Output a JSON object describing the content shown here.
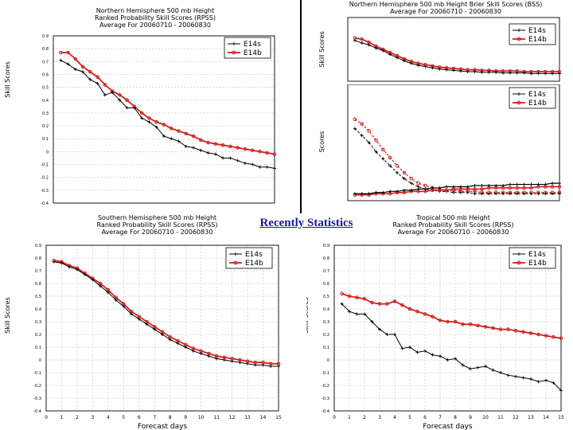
{
  "center_label": "Recently Statistics",
  "colors": {
    "e14s": "#000000",
    "e14b": "#d42020",
    "grid": "#b8b8b8"
  },
  "chart_data": [
    {
      "id": "nh",
      "type": "line",
      "title_lines": [
        "Northern Hemisphere 500 mb Height",
        "Ranked Probability Skill Scores (RPSS)",
        "Average For 20060710 - 20060830"
      ],
      "ylabel": "Skill Scores",
      "xlabel": "",
      "ylim": [
        -0.4,
        0.9
      ],
      "yticks": [
        -0.4,
        -0.3,
        -0.2,
        -0.1,
        0,
        0.1,
        0.2,
        0.3,
        0.4,
        0.5,
        0.6,
        0.7,
        0.8,
        0.9
      ],
      "ytick_labels": [
        "-0.4",
        "-0.3",
        "-0.2",
        "-0.1",
        "0",
        "0.1",
        "0.2",
        "0.3",
        "0.4",
        "0.5",
        "0.6",
        "0.7",
        "0.8",
        "0.9"
      ],
      "xlim": [
        0,
        15
      ],
      "xticks": [],
      "legend": [
        "E14s",
        "E14b"
      ],
      "legend_loc": "top-right",
      "x": [
        0.5,
        1,
        1.5,
        2,
        2.5,
        3,
        3.5,
        4,
        4.5,
        5,
        5.5,
        6,
        6.5,
        7,
        7.5,
        8,
        8.5,
        9,
        9.5,
        10,
        10.5,
        11,
        11.5,
        12,
        12.5,
        13,
        13.5,
        14,
        14.5,
        15
      ],
      "series": [
        {
          "name": "E14s",
          "values": [
            0.71,
            0.68,
            0.64,
            0.62,
            0.56,
            0.53,
            0.44,
            0.46,
            0.4,
            0.34,
            0.34,
            0.26,
            0.23,
            0.19,
            0.12,
            0.1,
            0.08,
            0.04,
            0.03,
            0.01,
            -0.01,
            -0.02,
            -0.05,
            -0.05,
            -0.07,
            -0.09,
            -0.1,
            -0.12,
            -0.12,
            -0.13
          ]
        },
        {
          "name": "E14b",
          "values": [
            0.77,
            0.77,
            0.72,
            0.66,
            0.62,
            0.58,
            0.52,
            0.47,
            0.44,
            0.4,
            0.35,
            0.3,
            0.26,
            0.23,
            0.21,
            0.18,
            0.16,
            0.14,
            0.12,
            0.09,
            0.07,
            0.06,
            0.05,
            0.04,
            0.03,
            0.02,
            0.01,
            0.0,
            -0.01,
            -0.02
          ]
        }
      ]
    },
    {
      "id": "nh_brier_top",
      "type": "line",
      "title_lines": [
        "Northern Hemisphere 500 mb Height Brier Skill Scores (BSS)",
        "Average For 20060710 - 20060830"
      ],
      "ylabel": "Skill Scores",
      "xlabel": "",
      "ylim": [
        0,
        1
      ],
      "yticks": [],
      "xlim": [
        0,
        15
      ],
      "xticks": [],
      "legend": [
        "E14s",
        "E14b"
      ],
      "legend_loc": "top-right",
      "x": [
        0.5,
        1,
        1.5,
        2,
        2.5,
        3,
        3.5,
        4,
        4.5,
        5,
        5.5,
        6,
        6.5,
        7,
        7.5,
        8,
        8.5,
        9,
        9.5,
        10,
        10.5,
        11,
        11.5,
        12,
        12.5,
        13,
        13.5,
        14,
        14.5,
        15
      ],
      "series": [
        {
          "name": "E14s",
          "values": [
            0.64,
            0.6,
            0.57,
            0.52,
            0.48,
            0.42,
            0.37,
            0.32,
            0.28,
            0.25,
            0.23,
            0.21,
            0.19,
            0.18,
            0.17,
            0.16,
            0.15,
            0.15,
            0.14,
            0.14,
            0.14,
            0.13,
            0.13,
            0.13,
            0.13,
            0.12,
            0.12,
            0.12,
            0.12,
            0.12
          ]
        },
        {
          "name": "E14b",
          "values": [
            0.68,
            0.66,
            0.61,
            0.55,
            0.5,
            0.45,
            0.4,
            0.35,
            0.31,
            0.28,
            0.26,
            0.24,
            0.22,
            0.21,
            0.2,
            0.19,
            0.18,
            0.18,
            0.17,
            0.17,
            0.16,
            0.16,
            0.16,
            0.16,
            0.15,
            0.15,
            0.15,
            0.15,
            0.15,
            0.15
          ]
        }
      ]
    },
    {
      "id": "nh_brier_bottom",
      "type": "line",
      "title_lines": [],
      "ylabel": "Scores",
      "xlabel": "",
      "ylim": [
        0,
        1
      ],
      "yticks": [],
      "xlim": [
        0,
        15
      ],
      "xticks": [],
      "legend": [
        "E14s",
        "E14b"
      ],
      "legend_loc": "top-right",
      "x": [
        0.5,
        1,
        1.5,
        2,
        2.5,
        3,
        3.5,
        4,
        4.5,
        5,
        5.5,
        6,
        6.5,
        7,
        7.5,
        8,
        8.5,
        9,
        9.5,
        10,
        10.5,
        11,
        11.5,
        12,
        12.5,
        13,
        13.5,
        14,
        14.5,
        15
      ],
      "series": [
        {
          "name": "E14s dashed",
          "values": [
            0.62,
            0.56,
            0.5,
            0.42,
            0.36,
            0.3,
            0.24,
            0.19,
            0.15,
            0.12,
            0.1,
            0.09,
            0.08,
            0.08,
            0.07,
            0.07,
            0.07,
            0.06,
            0.06,
            0.06,
            0.06,
            0.06,
            0.06,
            0.06,
            0.06,
            0.06,
            0.06,
            0.06,
            0.06,
            0.06
          ]
        },
        {
          "name": "E14b dashed",
          "values": [
            0.7,
            0.66,
            0.6,
            0.52,
            0.44,
            0.37,
            0.3,
            0.24,
            0.19,
            0.15,
            0.13,
            0.11,
            0.1,
            0.09,
            0.09,
            0.08,
            0.08,
            0.08,
            0.07,
            0.07,
            0.07,
            0.07,
            0.07,
            0.07,
            0.07,
            0.07,
            0.07,
            0.07,
            0.07,
            0.07
          ]
        },
        {
          "name": "E14s solid",
          "values": [
            0.06,
            0.06,
            0.06,
            0.07,
            0.07,
            0.08,
            0.08,
            0.09,
            0.09,
            0.1,
            0.1,
            0.11,
            0.11,
            0.12,
            0.12,
            0.12,
            0.12,
            0.13,
            0.13,
            0.13,
            0.13,
            0.13,
            0.14,
            0.14,
            0.14,
            0.14,
            0.14,
            0.14,
            0.15,
            0.15
          ]
        },
        {
          "name": "E14b solid",
          "values": [
            0.05,
            0.05,
            0.05,
            0.06,
            0.06,
            0.06,
            0.07,
            0.07,
            0.08,
            0.08,
            0.08,
            0.09,
            0.09,
            0.09,
            0.1,
            0.1,
            0.1,
            0.1,
            0.1,
            0.11,
            0.11,
            0.11,
            0.11,
            0.11,
            0.11,
            0.11,
            0.12,
            0.12,
            0.12,
            0.12
          ]
        }
      ]
    },
    {
      "id": "sh",
      "type": "line",
      "title_lines": [
        "Southern Hemisphere 500 mb Height",
        "Ranked Probability Skill Scores (RPSS)",
        "Average For 20060710 - 20060830"
      ],
      "ylabel": "Skill Scores",
      "xlabel": "Forecast days",
      "ylim": [
        -0.4,
        0.9
      ],
      "yticks": [
        -0.4,
        -0.3,
        -0.2,
        -0.1,
        0,
        0.1,
        0.2,
        0.3,
        0.4,
        0.5,
        0.6,
        0.7,
        0.8,
        0.9
      ],
      "ytick_labels": [
        "-0.4",
        "-0.3",
        "-0.2",
        "-0.1",
        "0",
        "0.1",
        "0.2",
        "0.3",
        "0.4",
        "0.5",
        "0.6",
        "0.7",
        "0.8",
        "0.9"
      ],
      "xlim": [
        0,
        15
      ],
      "xticks": [
        0,
        1,
        2,
        3,
        4,
        5,
        6,
        7,
        8,
        9,
        10,
        11,
        12,
        13,
        14,
        15
      ],
      "xtick_labels": [
        "0",
        "1",
        "2",
        "3",
        "4",
        "5",
        "6",
        "7",
        "8",
        "9",
        "10",
        "11",
        "12",
        "13",
        "14",
        "15"
      ],
      "legend": [
        "E14s",
        "E14b"
      ],
      "legend_loc": "top-right",
      "x": [
        0.5,
        1,
        1.5,
        2,
        2.5,
        3,
        3.5,
        4,
        4.5,
        5,
        5.5,
        6,
        6.5,
        7,
        7.5,
        8,
        8.5,
        9,
        9.5,
        10,
        10.5,
        11,
        11.5,
        12,
        12.5,
        13,
        13.5,
        14,
        14.5,
        15
      ],
      "series": [
        {
          "name": "E14s",
          "values": [
            0.77,
            0.76,
            0.73,
            0.71,
            0.67,
            0.63,
            0.58,
            0.53,
            0.47,
            0.42,
            0.36,
            0.32,
            0.28,
            0.24,
            0.2,
            0.16,
            0.13,
            0.1,
            0.07,
            0.05,
            0.03,
            0.01,
            0.0,
            -0.01,
            -0.02,
            -0.03,
            -0.04,
            -0.04,
            -0.05,
            -0.05
          ]
        },
        {
          "name": "E14b",
          "values": [
            0.78,
            0.77,
            0.74,
            0.72,
            0.68,
            0.64,
            0.6,
            0.55,
            0.49,
            0.44,
            0.38,
            0.34,
            0.3,
            0.26,
            0.22,
            0.18,
            0.15,
            0.12,
            0.09,
            0.07,
            0.05,
            0.03,
            0.02,
            0.01,
            0.0,
            -0.01,
            -0.02,
            -0.02,
            -0.03,
            -0.03
          ]
        }
      ]
    },
    {
      "id": "tr",
      "type": "line",
      "title_lines": [
        "Tropical 500 mb Height",
        "Ranked Probability Skill Scores (RPSS)",
        "Average For 20060710 - 20060830"
      ],
      "ylabel": "Skill Scores",
      "xlabel": "Forecast days",
      "ylim": [
        -0.4,
        0.9
      ],
      "yticks": [
        -0.4,
        -0.3,
        -0.2,
        -0.1,
        0,
        0.1,
        0.2,
        0.3,
        0.4,
        0.5,
        0.6,
        0.7,
        0.8,
        0.9
      ],
      "ytick_labels": [
        "-0.4",
        "-0.3",
        "-0.2",
        "-0.1",
        "0",
        "0.1",
        "0.2",
        "0.3",
        "0.4",
        "0.5",
        "0.6",
        "0.7",
        "0.8",
        "0.9"
      ],
      "xlim": [
        0,
        15
      ],
      "xticks": [
        0,
        1,
        2,
        3,
        4,
        5,
        6,
        7,
        8,
        9,
        10,
        11,
        12,
        13,
        14,
        15
      ],
      "xtick_labels": [
        "0",
        "1",
        "2",
        "3",
        "4",
        "5",
        "6",
        "7",
        "8",
        "9",
        "10",
        "11",
        "12",
        "13",
        "14",
        "15"
      ],
      "legend": [
        "E14s",
        "E14b"
      ],
      "legend_loc": "top-right",
      "x": [
        0.5,
        1,
        1.5,
        2,
        2.5,
        3,
        3.5,
        4,
        4.5,
        5,
        5.5,
        6,
        6.5,
        7,
        7.5,
        8,
        8.5,
        9,
        9.5,
        10,
        10.5,
        11,
        11.5,
        12,
        12.5,
        13,
        13.5,
        14,
        14.5,
        15
      ],
      "series": [
        {
          "name": "E14s",
          "values": [
            0.44,
            0.38,
            0.36,
            0.36,
            0.3,
            0.24,
            0.2,
            0.2,
            0.09,
            0.1,
            0.06,
            0.07,
            0.04,
            0.03,
            0.0,
            0.01,
            -0.04,
            -0.07,
            -0.06,
            -0.05,
            -0.08,
            -0.1,
            -0.12,
            -0.13,
            -0.14,
            -0.15,
            -0.17,
            -0.16,
            -0.18,
            -0.24
          ]
        },
        {
          "name": "E14b",
          "values": [
            0.52,
            0.5,
            0.49,
            0.48,
            0.45,
            0.44,
            0.44,
            0.46,
            0.43,
            0.4,
            0.38,
            0.36,
            0.34,
            0.31,
            0.3,
            0.3,
            0.28,
            0.28,
            0.27,
            0.26,
            0.25,
            0.24,
            0.24,
            0.23,
            0.22,
            0.21,
            0.2,
            0.19,
            0.18,
            0.17
          ]
        }
      ]
    }
  ]
}
